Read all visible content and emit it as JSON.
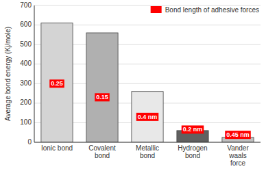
{
  "chart_data": {
    "type": "bar",
    "categories": [
      "Ionic bond",
      "Covalent\nbond",
      "Metallic\nbond",
      "Hydrogen\nbond",
      "Vander\nwaals\nforce"
    ],
    "values": [
      610,
      560,
      260,
      60,
      25
    ],
    "colors": [
      "#d4d4d4",
      "#b0b0b0",
      "#e8e8e8",
      "#606060",
      "#c0c0c0"
    ],
    "ylabel": "Average bond energy (Kj/mole)",
    "ylim": [
      0,
      700
    ],
    "yticks": [
      0,
      100,
      200,
      300,
      400,
      500,
      600,
      700
    ],
    "grid": true,
    "legend": "upper right",
    "annotations": {
      "name": "Bond length of adhesive forces",
      "color": "#ff0000",
      "labels": [
        "0.25",
        "0.15",
        "0.4 nm",
        "0.2 nm",
        "0.45 nm"
      ],
      "y": [
        300,
        230,
        130,
        65,
        38
      ]
    }
  }
}
